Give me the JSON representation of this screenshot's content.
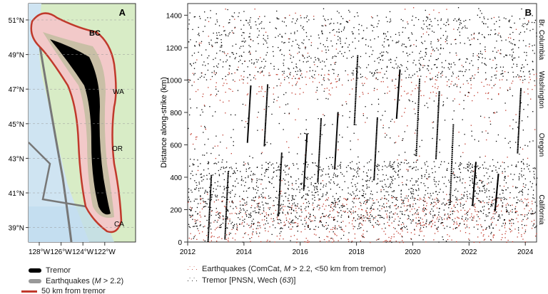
{
  "panel_a": {
    "label": "A",
    "lat_ticks": [
      "51°N",
      "49°N",
      "47°N",
      "45°N",
      "43°N",
      "41°N",
      "39°N"
    ],
    "lat_values": [
      51,
      49,
      47,
      45,
      43,
      41,
      39
    ],
    "lon_ticks": [
      "128°W",
      "126°W",
      "124°W",
      "122°W"
    ],
    "lon_values": [
      -128,
      -126,
      -124,
      -122
    ],
    "region_labels": [
      "BC",
      "WA",
      "OR",
      "CA"
    ],
    "colors": {
      "land": "#d8ecc6",
      "ocean": "#cfe4f2",
      "buffer_fill": "#f2c9c9",
      "buffer_line": "#c0392b",
      "tremor": "#000000",
      "earthquakes": "#777777"
    },
    "legend": {
      "tremor": "Tremor",
      "earthquakes_pre": "Earthquakes (",
      "earthquakes_m": "M",
      "earthquakes_post": " > 2.2)",
      "buffer": "50 km from tremor"
    }
  },
  "chart_data": {
    "type": "scatter",
    "panel_label": "B",
    "title": "",
    "xlabel": "",
    "ylabel": "Distance along-strike (km)",
    "xlim": [
      2012,
      2024.4
    ],
    "ylim": [
      0,
      1450
    ],
    "x_ticks": [
      2012,
      2014,
      2016,
      2018,
      2020,
      2022,
      2024
    ],
    "x_tick_labels": [
      "2012",
      "2014",
      "2016",
      "2018",
      "2020",
      "2022",
      "2024"
    ],
    "y_ticks": [
      0,
      200,
      400,
      600,
      800,
      1000,
      1200,
      1400
    ],
    "y_tick_labels": [
      "0",
      "200",
      "400",
      "600",
      "800",
      "1000",
      "1200",
      "1400"
    ],
    "right_labels": [
      "Br. Columbia",
      "Washington",
      "Oregon",
      "California"
    ],
    "right_label_centers_km": [
      1250,
      940,
      600,
      200
    ],
    "series": [
      {
        "name": "Earthquakes (ComCat, M > 2.2, <50 km from tremor)",
        "color": "#c0392b",
        "dense_bands_km": [
          [
            0,
            280
          ],
          [
            900,
            1050
          ]
        ],
        "approx_points": 2200
      },
      {
        "name": "Tremor [PNSN, Wech (63)]",
        "color": "#000000",
        "dense_bands_km": [
          [
            80,
            500
          ],
          [
            1000,
            1400
          ]
        ],
        "approx_points": 9000,
        "major_episode_years": [
          2012.7,
          2013.3,
          2014.1,
          2014.7,
          2015.2,
          2016.1,
          2016.6,
          2017.2,
          2017.9,
          2018.6,
          2019.4,
          2020.1,
          2020.8,
          2021.3,
          2022.1,
          2022.9,
          2023.7
        ]
      }
    ],
    "legend": {
      "eq_pre": "Earthquakes (ComCat, ",
      "eq_m": "M",
      "eq_post": " > 2.2, <50 km from tremor)",
      "tr_pre": "Tremor [PNSN, Wech (",
      "tr_ref": "63",
      "tr_post": ")]"
    }
  }
}
